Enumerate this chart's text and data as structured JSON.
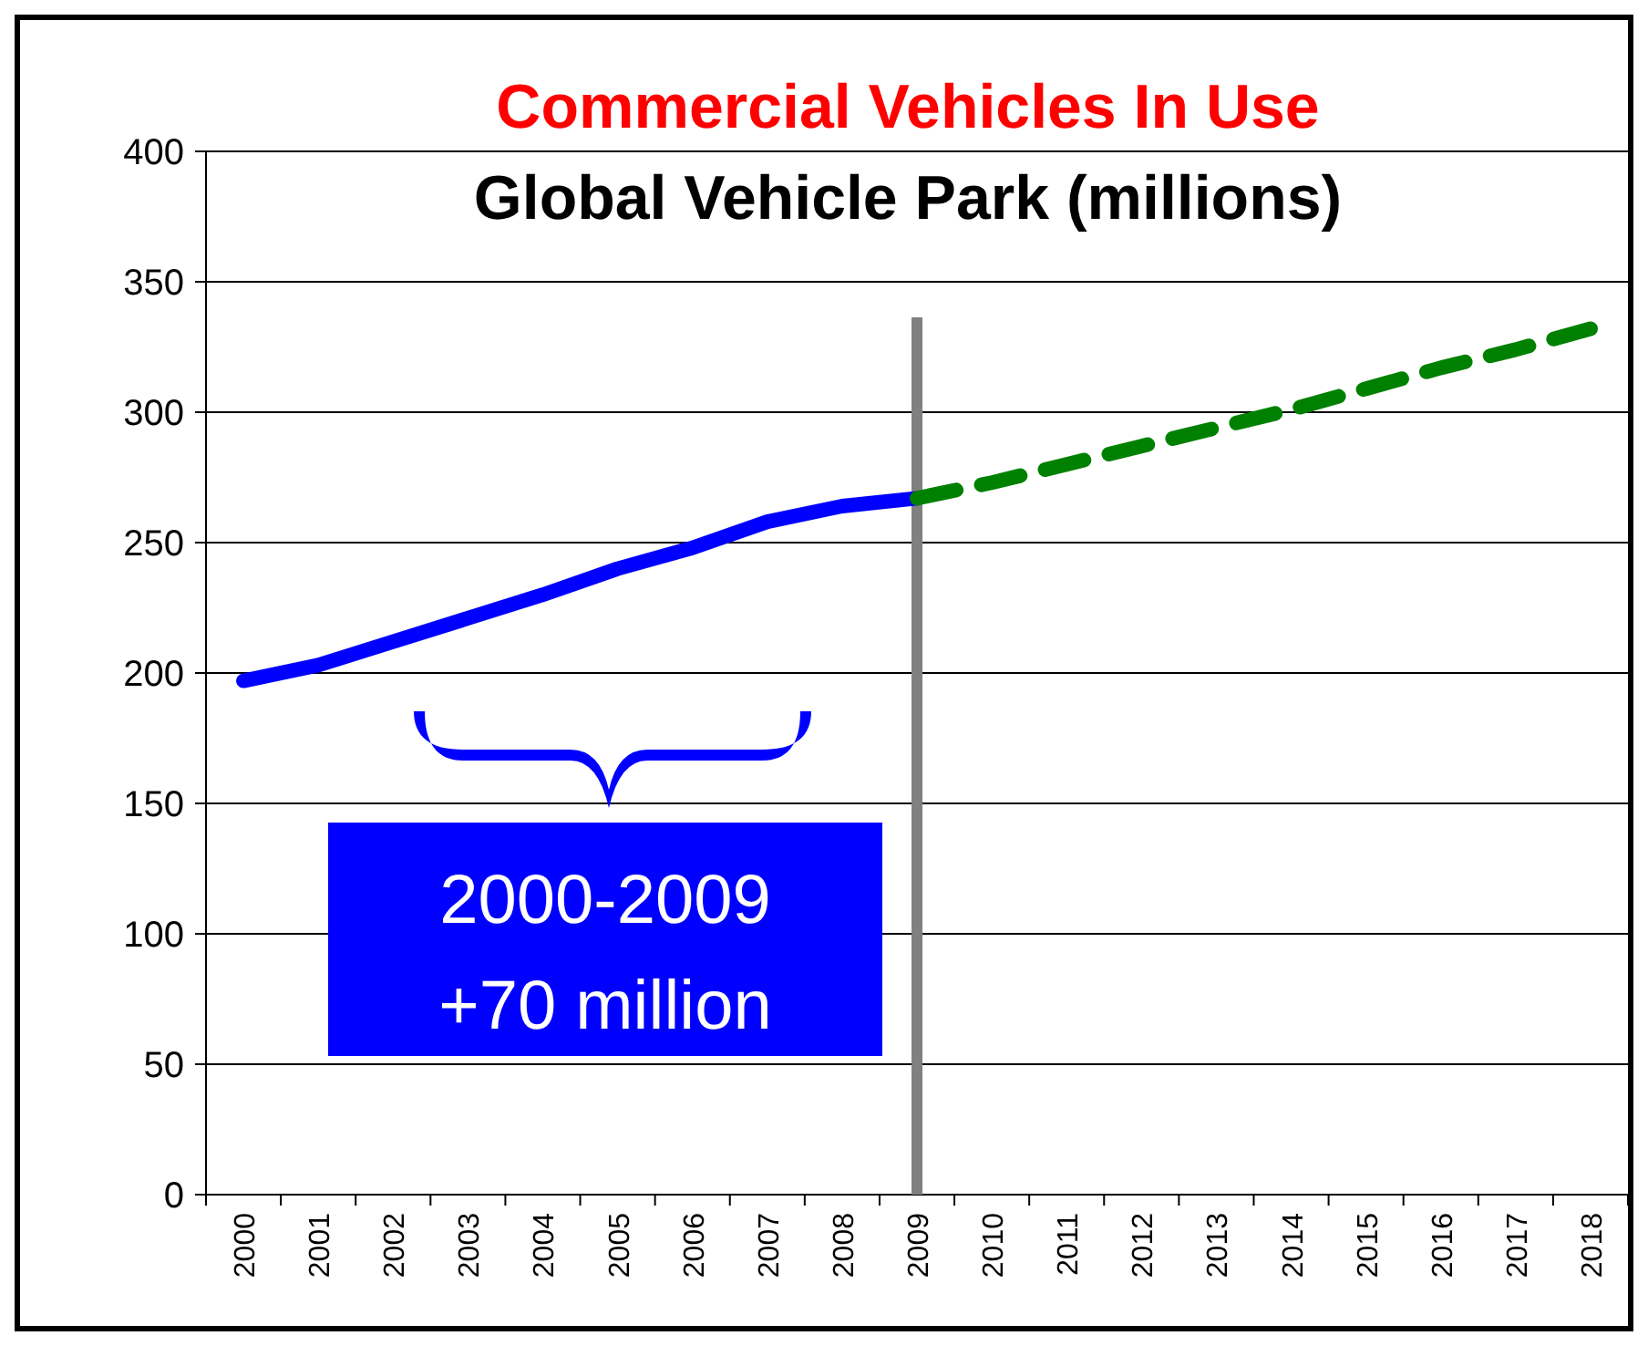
{
  "chart_data": {
    "type": "line",
    "title": "Commercial Vehicles In Use",
    "subtitle": "Global Vehicle Park (millions)",
    "categories": [
      "2000",
      "2001",
      "2002",
      "2003",
      "2004",
      "2005",
      "2006",
      "2007",
      "2008",
      "2009",
      "2010",
      "2011",
      "2012",
      "2013",
      "2014",
      "2015",
      "2016",
      "2017",
      "2018"
    ],
    "series": [
      {
        "color": "#0000ff",
        "line_style": "solid",
        "values": [
          197,
          203,
          212,
          221,
          230,
          240,
          248,
          258,
          264,
          267,
          null,
          null,
          null,
          null,
          null,
          null,
          null,
          null,
          null
        ]
      },
      {
        "color": "#008000",
        "line_style": "dashed",
        "values": [
          null,
          null,
          null,
          null,
          null,
          null,
          null,
          null,
          null,
          267,
          273,
          280,
          287,
          294,
          301,
          309,
          317,
          324,
          332
        ]
      }
    ],
    "ylim": [
      0,
      400
    ],
    "yticks": [
      0,
      50,
      100,
      150,
      200,
      250,
      300,
      350,
      400
    ],
    "grid": "y",
    "marker": "none",
    "ref_lines": [
      {
        "axis": "x",
        "value": "2009",
        "color": "#808080"
      }
    ],
    "annotations": [
      "2000-2009\n+70 million"
    ]
  }
}
